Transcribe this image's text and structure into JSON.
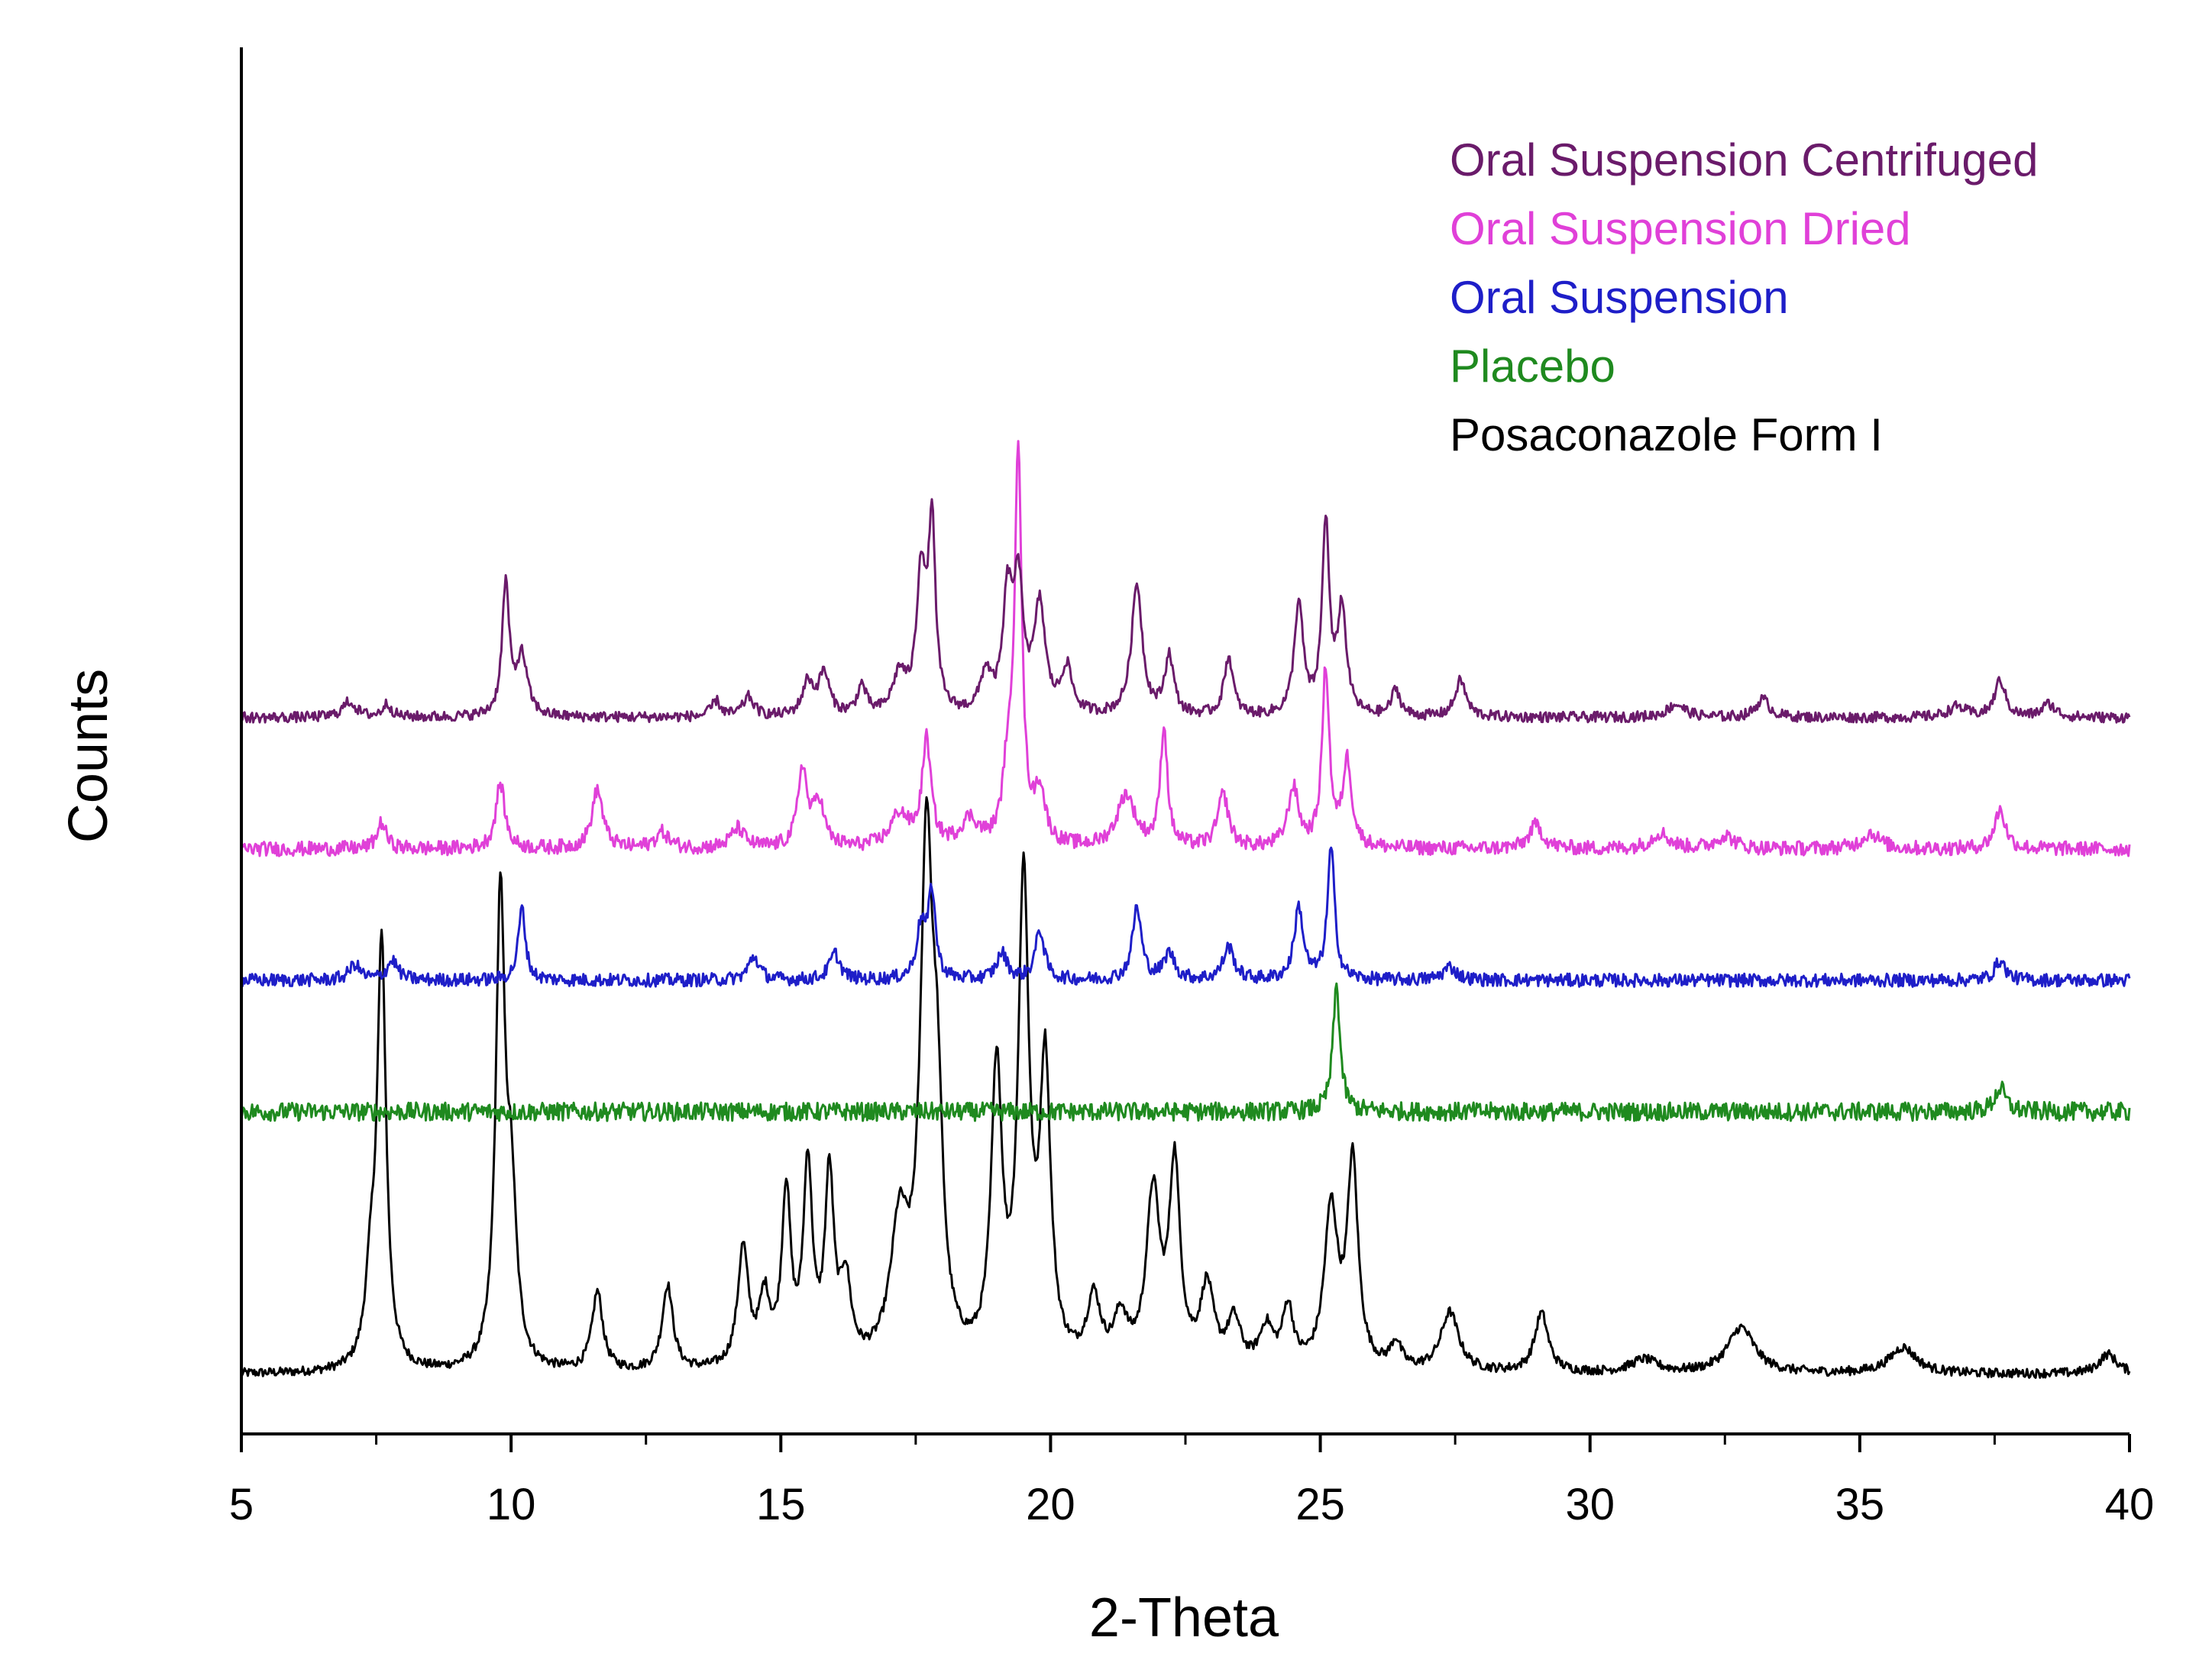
{
  "chart_data": {
    "type": "line",
    "title": "",
    "xlabel": "2-Theta",
    "ylabel": "Counts",
    "xlim": [
      5,
      40
    ],
    "xticks": [
      5,
      10,
      15,
      20,
      25,
      30,
      35,
      40
    ],
    "yticks_shown": false,
    "grid": false,
    "legend_position": "top-right",
    "series": [
      {
        "name": "Oral Suspension Centrifuged",
        "color": "#6a1b6a",
        "offset": 4,
        "baseline": 1.0,
        "noise": 0.04,
        "peaks": [
          [
            7.0,
            0.12,
            0.15
          ],
          [
            7.7,
            0.1,
            0.1
          ],
          [
            9.9,
            1.0,
            0.08
          ],
          [
            10.2,
            0.45,
            0.12
          ],
          [
            13.8,
            0.12,
            0.1
          ],
          [
            14.4,
            0.15,
            0.12
          ],
          [
            15.5,
            0.25,
            0.12
          ],
          [
            15.8,
            0.32,
            0.12
          ],
          [
            16.5,
            0.22,
            0.1
          ],
          [
            17.2,
            0.3,
            0.15
          ],
          [
            17.6,
            1.05,
            0.1
          ],
          [
            17.8,
            1.4,
            0.08
          ],
          [
            18.8,
            0.3,
            0.12
          ],
          [
            19.2,
            0.8,
            0.1
          ],
          [
            19.4,
            0.95,
            0.12
          ],
          [
            19.8,
            0.8,
            0.12
          ],
          [
            20.3,
            0.35,
            0.12
          ],
          [
            21.6,
            1.0,
            0.12
          ],
          [
            22.2,
            0.45,
            0.1
          ],
          [
            23.3,
            0.45,
            0.1
          ],
          [
            24.6,
            0.85,
            0.1
          ],
          [
            25.1,
            1.45,
            0.08
          ],
          [
            25.4,
            0.8,
            0.1
          ],
          [
            26.4,
            0.2,
            0.1
          ],
          [
            27.6,
            0.28,
            0.12
          ],
          [
            31.6,
            0.1,
            0.2
          ],
          [
            33.2,
            0.14,
            0.15
          ],
          [
            36.8,
            0.08,
            0.2
          ],
          [
            37.6,
            0.28,
            0.12
          ],
          [
            38.5,
            0.1,
            0.15
          ]
        ]
      },
      {
        "name": "Oral Suspension Dried",
        "color": "#e040d8",
        "offset": 3,
        "baseline": 1.0,
        "noise": 0.055,
        "peaks": [
          [
            7.6,
            0.2,
            0.1
          ],
          [
            9.8,
            0.5,
            0.1
          ],
          [
            11.6,
            0.45,
            0.12
          ],
          [
            12.8,
            0.12,
            0.15
          ],
          [
            14.2,
            0.15,
            0.15
          ],
          [
            15.4,
            0.6,
            0.1
          ],
          [
            15.7,
            0.35,
            0.12
          ],
          [
            17.2,
            0.25,
            0.2
          ],
          [
            17.7,
            0.8,
            0.1
          ],
          [
            18.5,
            0.2,
            0.2
          ],
          [
            19.2,
            0.5,
            0.1
          ],
          [
            19.4,
            3.0,
            0.08
          ],
          [
            19.8,
            0.4,
            0.12
          ],
          [
            21.4,
            0.4,
            0.2
          ],
          [
            22.1,
            0.9,
            0.08
          ],
          [
            23.2,
            0.4,
            0.12
          ],
          [
            24.5,
            0.45,
            0.12
          ],
          [
            25.1,
            1.35,
            0.08
          ],
          [
            25.5,
            0.65,
            0.1
          ],
          [
            29.0,
            0.18,
            0.15
          ],
          [
            31.3,
            0.12,
            0.2
          ],
          [
            32.5,
            0.1,
            0.2
          ],
          [
            35.2,
            0.12,
            0.2
          ],
          [
            37.6,
            0.3,
            0.12
          ]
        ]
      },
      {
        "name": "Oral Suspension",
        "color": "#1e1ec8",
        "offset": 2,
        "baseline": 1.0,
        "noise": 0.05,
        "peaks": [
          [
            7.1,
            0.12,
            0.12
          ],
          [
            7.8,
            0.15,
            0.12
          ],
          [
            10.2,
            0.55,
            0.08
          ],
          [
            14.5,
            0.18,
            0.12
          ],
          [
            16.0,
            0.2,
            0.12
          ],
          [
            17.6,
            0.4,
            0.1
          ],
          [
            17.8,
            0.65,
            0.08
          ],
          [
            19.1,
            0.2,
            0.12
          ],
          [
            19.8,
            0.38,
            0.1
          ],
          [
            21.6,
            0.55,
            0.1
          ],
          [
            22.2,
            0.2,
            0.12
          ],
          [
            23.3,
            0.25,
            0.12
          ],
          [
            24.6,
            0.55,
            0.1
          ],
          [
            25.2,
            1.0,
            0.08
          ],
          [
            27.4,
            0.1,
            0.15
          ],
          [
            37.6,
            0.15,
            0.12
          ]
        ]
      },
      {
        "name": "Placebo",
        "color": "#1f8a1f",
        "offset": 1,
        "baseline": 1.0,
        "noise": 0.07,
        "peaks": [
          [
            25.3,
            0.95,
            0.08
          ],
          [
            37.6,
            0.18,
            0.12
          ]
        ]
      },
      {
        "name": "Posaconazole Form I",
        "color": "#000000",
        "offset": 0,
        "baseline": 0.0,
        "noise": 0.035,
        "peaks": [
          [
            7.4,
            0.6,
            0.12
          ],
          [
            7.6,
            3.2,
            0.1
          ],
          [
            9.8,
            3.5,
            0.1
          ],
          [
            10.0,
            1.2,
            0.12
          ],
          [
            11.6,
            0.6,
            0.12
          ],
          [
            12.9,
            0.65,
            0.12
          ],
          [
            14.3,
            0.9,
            0.12
          ],
          [
            14.7,
            0.5,
            0.12
          ],
          [
            15.1,
            1.3,
            0.1
          ],
          [
            15.5,
            1.5,
            0.1
          ],
          [
            15.9,
            1.4,
            0.1
          ],
          [
            16.2,
            0.6,
            0.12
          ],
          [
            17.2,
            1.0,
            0.2
          ],
          [
            17.7,
            3.8,
            0.14
          ],
          [
            17.9,
            1.5,
            0.12
          ],
          [
            19.0,
            2.2,
            0.12
          ],
          [
            19.5,
            3.6,
            0.12
          ],
          [
            19.9,
            2.2,
            0.12
          ],
          [
            20.8,
            0.5,
            0.15
          ],
          [
            21.3,
            0.35,
            0.15
          ],
          [
            21.9,
            1.3,
            0.15
          ],
          [
            22.3,
            1.5,
            0.12
          ],
          [
            22.9,
            0.6,
            0.15
          ],
          [
            23.4,
            0.35,
            0.15
          ],
          [
            24.0,
            0.3,
            0.15
          ],
          [
            24.4,
            0.45,
            0.12
          ],
          [
            25.2,
            1.2,
            0.15
          ],
          [
            25.6,
            1.55,
            0.12
          ],
          [
            26.4,
            0.2,
            0.12
          ],
          [
            27.4,
            0.45,
            0.2
          ],
          [
            29.1,
            0.45,
            0.15
          ],
          [
            31.0,
            0.1,
            0.3
          ],
          [
            32.8,
            0.35,
            0.3
          ],
          [
            35.8,
            0.2,
            0.3
          ],
          [
            39.6,
            0.15,
            0.2
          ]
        ]
      }
    ]
  }
}
